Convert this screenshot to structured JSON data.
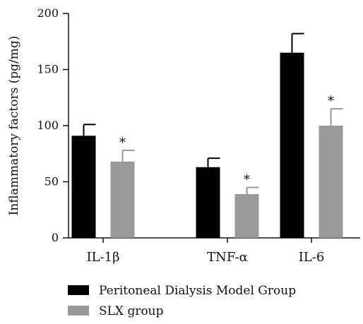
{
  "chart_data": {
    "type": "bar",
    "ylabel": "Inflammatory factors (pg/mg)",
    "xlabel": "",
    "ylim": [
      0,
      200
    ],
    "yticks": [
      0,
      50,
      100,
      150,
      200
    ],
    "categories": [
      "IL-1β",
      "TNF-α",
      "IL-6"
    ],
    "series": [
      {
        "name": "Peritoneal Dialysis Model Group",
        "color": "#000000",
        "values": [
          91,
          63,
          165
        ],
        "errors": [
          10,
          8,
          17
        ],
        "significance": [
          "",
          "",
          ""
        ]
      },
      {
        "name": "SLX group",
        "color": "#999999",
        "values": [
          68,
          39,
          100
        ],
        "errors": [
          10,
          6,
          15
        ],
        "significance": [
          "*",
          "*",
          "*"
        ]
      }
    ],
    "legend_position": "bottom"
  }
}
